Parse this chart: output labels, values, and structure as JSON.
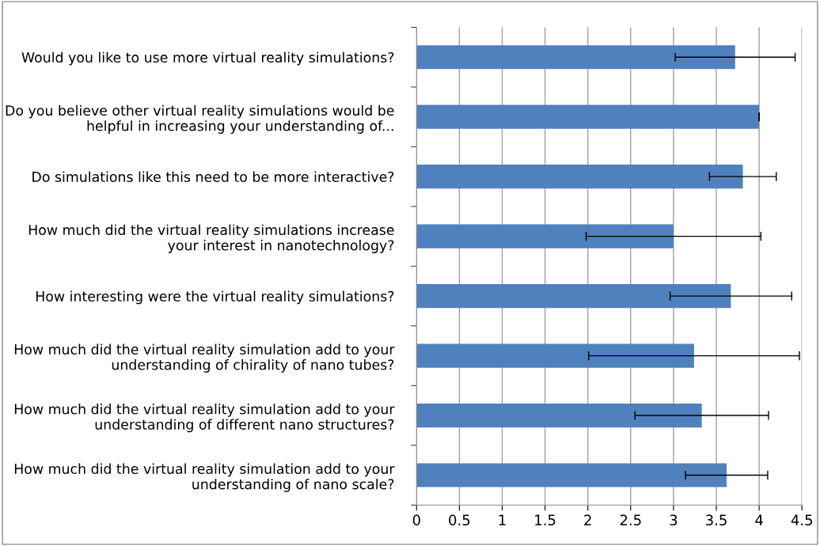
{
  "chart_data": {
    "type": "bar",
    "orientation": "horizontal",
    "categories": [
      "Would you like to use more virtual reality simulations?",
      "Do you believe other virtual reality simulations would be helpful in increasing your understanding of...",
      "Do simulations like this need to be more interactive?",
      "How much did the virtual reality simulations increase your interest in nanotechnology?",
      "How interesting were the virtual reality simulations?",
      "How much did the virtual reality simulation add to your understanding of chirality of nano tubes?",
      "How much did the virtual reality simulation add to your understanding of different nano structures?",
      "How much did the virtual reality simulation add to your understanding of nano scale?"
    ],
    "values": [
      3.72,
      4.0,
      3.81,
      3.0,
      3.67,
      3.24,
      3.33,
      3.62
    ],
    "errors": [
      0.7,
      0,
      0.39,
      1.02,
      0.71,
      1.23,
      0.78,
      0.48
    ],
    "color": "#4f81bd",
    "xlim": [
      0,
      4.5
    ],
    "xticks": [
      0,
      0.5,
      1,
      1.5,
      2,
      2.5,
      3,
      3.5,
      4,
      4.5
    ],
    "grid": "x",
    "legend": false
  }
}
